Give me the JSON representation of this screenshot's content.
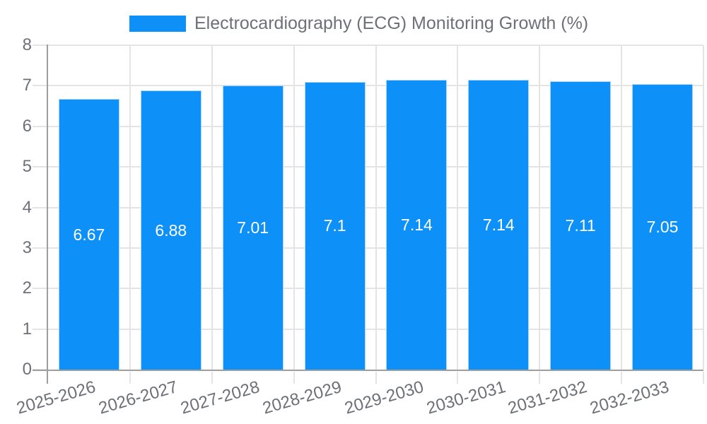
{
  "legend": {
    "label": "Electrocardiography (ECG) Monitoring Growth (%)"
  },
  "chart_data": {
    "type": "bar",
    "title": "Electrocardiography (ECG) Monitoring Growth (%)",
    "categories": [
      "2025-2026",
      "2026-2027",
      "2027-2028",
      "2028-2029",
      "2029-2030",
      "2030-2031",
      "2031-2032",
      "2032-2033"
    ],
    "series": [
      {
        "name": "Electrocardiography (ECG) Monitoring Growth (%)",
        "values": [
          6.67,
          6.88,
          7.01,
          7.1,
          7.14,
          7.14,
          7.11,
          7.05
        ]
      }
    ],
    "value_labels": [
      "6.67",
      "6.88",
      "7.01",
      "7.1",
      "7.14",
      "7.14",
      "7.11",
      "7.05"
    ],
    "xlabel": "",
    "ylabel": "",
    "ylim": [
      0,
      8
    ],
    "y_ticks": [
      0,
      1,
      2,
      3,
      4,
      5,
      6,
      7,
      8
    ],
    "grid": true,
    "legend_position": "top-center",
    "x_label_rotation_deg": -16,
    "colors": {
      "bar_fill": "#0d90f8",
      "bar_border": "#a6d6fb",
      "grid_line": "#e4e4e4",
      "axis_line": "#9e9e9e",
      "tick_label": "#6e7079",
      "value_label": "#ffffff",
      "background": "#ffffff"
    }
  }
}
